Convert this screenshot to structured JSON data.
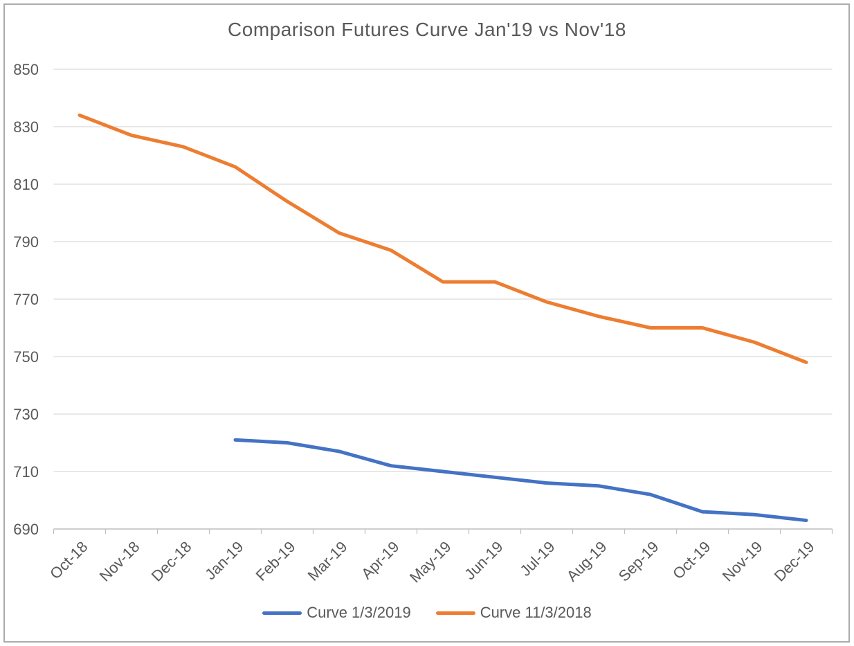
{
  "chart_data": {
    "type": "line",
    "title": "Comparison Futures Curve Jan'19 vs Nov'18",
    "categories": [
      "Oct-18",
      "Nov-18",
      "Dec-18",
      "Jan-19",
      "Feb-19",
      "Mar-19",
      "Apr-19",
      "May-19",
      "Jun-19",
      "Jul-19",
      "Aug-19",
      "Sep-19",
      "Oct-19",
      "Nov-19",
      "Dec-19"
    ],
    "series": [
      {
        "name": "Curve 1/3/2019",
        "color": "#4472C4",
        "values": [
          null,
          null,
          null,
          721,
          720,
          717,
          712,
          710,
          708,
          706,
          705,
          702,
          696,
          695,
          693
        ]
      },
      {
        "name": "Curve 11/3/2018",
        "color": "#ED7D31",
        "values": [
          834,
          827,
          823,
          816,
          804,
          793,
          787,
          776,
          776,
          769,
          764,
          760,
          760,
          755,
          748
        ]
      }
    ],
    "ylim": [
      690,
      850
    ],
    "ytick_step": 20,
    "ytick_labels": [
      "690",
      "710",
      "730",
      "750",
      "770",
      "790",
      "810",
      "830",
      "850"
    ],
    "grid": "horizontal",
    "legend_position": "bottom",
    "x_label_rotation": -45,
    "colors": {
      "axis_text": "#595959",
      "title_text": "#595959",
      "gridline": "#d9d9d9",
      "axis_line": "#bfbfbf",
      "frame_border": "#ababab"
    }
  }
}
